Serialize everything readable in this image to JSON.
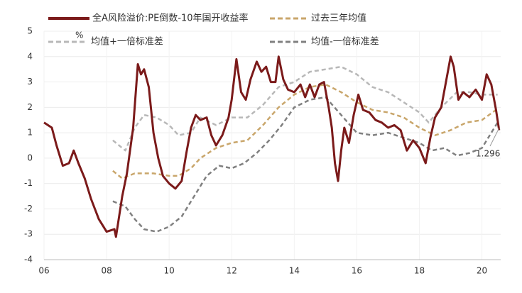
{
  "chart_data": {
    "type": "line",
    "y_unit_label": "%",
    "xlim": [
      2006,
      2020.6
    ],
    "ylim": [
      -4,
      5
    ],
    "xticks": [
      {
        "value": 2006,
        "label": "06"
      },
      {
        "value": 2008,
        "label": "08"
      },
      {
        "value": 2010,
        "label": "10"
      },
      {
        "value": 2012,
        "label": "12"
      },
      {
        "value": 2014,
        "label": "14"
      },
      {
        "value": 2016,
        "label": "16"
      },
      {
        "value": 2018,
        "label": "18"
      },
      {
        "value": 2020,
        "label": "20"
      }
    ],
    "yticks": [
      -4,
      -3,
      -2,
      -1,
      0,
      1,
      2,
      3,
      4,
      5
    ],
    "grid": true,
    "series": [
      {
        "name": "全A风险溢价:PE倒数-10年国开收益率",
        "color": "#7b1a1a",
        "dashed": false,
        "x": [
          2006.0,
          2006.25,
          2006.4,
          2006.6,
          2006.8,
          2006.95,
          2007.1,
          2007.3,
          2007.5,
          2007.75,
          2008.0,
          2008.25,
          2008.3,
          2008.5,
          2008.65,
          2008.85,
          2009.0,
          2009.1,
          2009.2,
          2009.35,
          2009.5,
          2009.65,
          2009.8,
          2010.0,
          2010.2,
          2010.4,
          2010.55,
          2010.7,
          2010.85,
          2011.0,
          2011.2,
          2011.35,
          2011.5,
          2011.7,
          2011.9,
          2012.0,
          2012.15,
          2012.3,
          2012.45,
          2012.6,
          2012.8,
          2012.95,
          2013.1,
          2013.25,
          2013.4,
          2013.5,
          2013.65,
          2013.8,
          2014.0,
          2014.2,
          2014.35,
          2014.5,
          2014.65,
          2014.8,
          2014.95,
          2015.1,
          2015.2,
          2015.3,
          2015.4,
          2015.5,
          2015.6,
          2015.75,
          2015.9,
          2016.05,
          2016.2,
          2016.4,
          2016.6,
          2016.8,
          2017.0,
          2017.2,
          2017.4,
          2017.6,
          2017.8,
          2018.0,
          2018.2,
          2018.35,
          2018.5,
          2018.7,
          2018.85,
          2019.0,
          2019.1,
          2019.25,
          2019.4,
          2019.6,
          2019.8,
          2020.0,
          2020.15,
          2020.3,
          2020.45,
          2020.55
        ],
        "values": [
          1.4,
          1.2,
          0.5,
          -0.3,
          -0.2,
          0.3,
          -0.2,
          -0.8,
          -1.6,
          -2.4,
          -2.9,
          -2.8,
          -3.1,
          -1.5,
          -0.6,
          1.2,
          3.7,
          3.3,
          3.5,
          2.8,
          1.0,
          0.0,
          -0.7,
          -1.0,
          -1.2,
          -0.9,
          0.2,
          1.2,
          1.7,
          1.5,
          1.6,
          0.9,
          0.5,
          0.9,
          1.6,
          2.3,
          3.9,
          2.6,
          2.3,
          3.1,
          3.8,
          3.4,
          3.6,
          3.0,
          3.0,
          4.0,
          3.1,
          2.7,
          2.6,
          2.9,
          2.4,
          2.9,
          2.4,
          2.9,
          3.0,
          2.0,
          1.2,
          -0.2,
          -0.9,
          0.3,
          1.2,
          0.6,
          1.7,
          2.5,
          1.9,
          1.8,
          1.5,
          1.4,
          1.2,
          1.3,
          1.1,
          0.3,
          0.7,
          0.4,
          -0.2,
          0.8,
          1.6,
          2.0,
          3.0,
          4.0,
          3.6,
          2.3,
          2.6,
          2.4,
          2.7,
          2.3,
          3.3,
          2.9,
          1.9,
          1.1
        ]
      },
      {
        "name": "过去三年均值",
        "color": "#c9a66b",
        "dashed": true,
        "x": [
          2008.2,
          2008.5,
          2008.9,
          2009.5,
          2010.0,
          2010.3,
          2010.7,
          2011.0,
          2011.5,
          2012.0,
          2012.5,
          2013.0,
          2013.5,
          2014.0,
          2014.5,
          2015.0,
          2015.5,
          2016.0,
          2016.5,
          2017.0,
          2017.5,
          2018.0,
          2018.5,
          2019.0,
          2019.5,
          2020.0,
          2020.45
        ],
        "values": [
          -0.5,
          -0.8,
          -0.6,
          -0.6,
          -0.7,
          -0.7,
          -0.4,
          0.0,
          0.4,
          0.6,
          0.7,
          1.3,
          2.0,
          2.5,
          2.8,
          2.9,
          2.6,
          2.2,
          1.9,
          1.8,
          1.6,
          1.2,
          0.9,
          1.1,
          1.4,
          1.5,
          1.9
        ]
      },
      {
        "name": "均值+一倍标准差",
        "color": "#b8b8b8",
        "dashed": true,
        "x": [
          2008.2,
          2008.6,
          2008.9,
          2009.2,
          2009.6,
          2010.0,
          2010.3,
          2010.7,
          2011.0,
          2011.5,
          2012.0,
          2012.5,
          2013.0,
          2013.5,
          2014.0,
          2014.5,
          2015.0,
          2015.5,
          2016.0,
          2016.5,
          2017.0,
          2017.5,
          2018.0,
          2018.3,
          2018.7,
          2019.2,
          2019.6,
          2020.0,
          2020.5
        ],
        "values": [
          0.7,
          0.3,
          1.2,
          1.7,
          1.6,
          1.3,
          0.9,
          1.0,
          1.6,
          1.3,
          1.6,
          1.6,
          2.1,
          2.8,
          3.0,
          3.4,
          3.5,
          3.6,
          3.3,
          2.8,
          2.6,
          2.2,
          1.8,
          1.4,
          2.0,
          2.6,
          2.6,
          2.5,
          2.5
        ]
      },
      {
        "name": "均值-一倍标准差",
        "color": "#808080",
        "dashed": true,
        "x": [
          2008.2,
          2008.6,
          2008.9,
          2009.2,
          2009.6,
          2010.0,
          2010.4,
          2010.8,
          2011.2,
          2011.6,
          2012.0,
          2012.4,
          2012.8,
          2013.2,
          2013.6,
          2014.0,
          2014.5,
          2015.0,
          2015.5,
          2016.0,
          2016.5,
          2017.0,
          2017.5,
          2018.0,
          2018.4,
          2018.8,
          2019.2,
          2019.6,
          2020.0,
          2020.3,
          2020.5
        ],
        "values": [
          -1.7,
          -1.9,
          -2.4,
          -2.8,
          -2.9,
          -2.7,
          -2.3,
          -1.5,
          -0.7,
          -0.3,
          -0.4,
          -0.2,
          0.2,
          0.7,
          1.3,
          2.0,
          2.3,
          2.4,
          1.7,
          1.0,
          0.9,
          1.0,
          0.8,
          0.6,
          0.3,
          0.4,
          0.1,
          0.2,
          0.4,
          1.0,
          1.4
        ]
      }
    ],
    "annotations": [
      {
        "text": "1.296"
      }
    ]
  }
}
